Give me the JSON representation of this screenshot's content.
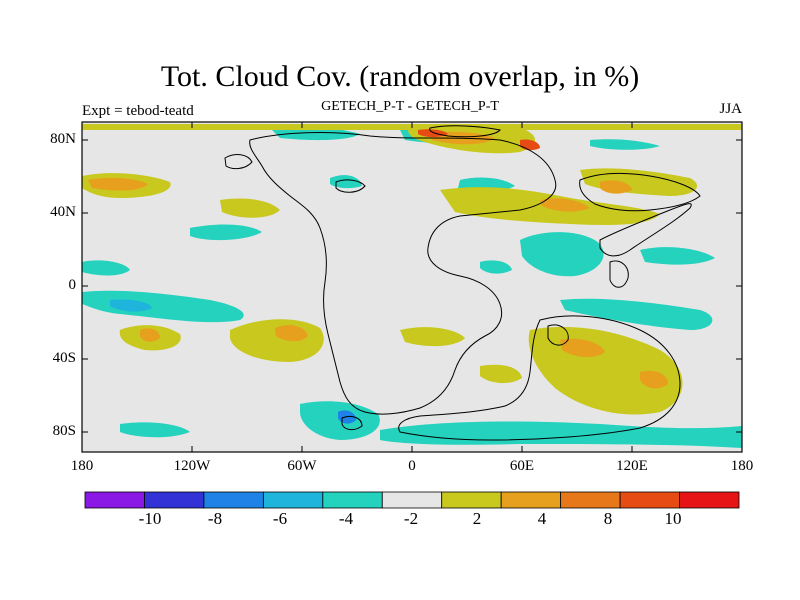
{
  "title": "Tot. Cloud Cov. (random overlap, in %)",
  "subtitle_left": "Expt = tebod-teatd",
  "subtitle_center": "GETECH_P-T - GETECH_P-T",
  "subtitle_right": "JJA",
  "y_ticks": [
    "80N",
    "40N",
    "0",
    "40S",
    "80S"
  ],
  "x_ticks": [
    "180",
    "120W",
    "60W",
    "0",
    "60E",
    "120E",
    "180"
  ],
  "colorbar": {
    "colors": [
      "#8a19e6",
      "#3232d6",
      "#1e82e6",
      "#1eb4dc",
      "#24d2be",
      "#e6e6e6",
      "#c8c81e",
      "#e6a01e",
      "#e67819",
      "#e64b14",
      "#e61414"
    ],
    "labels": [
      "-10",
      "-8",
      "-6",
      "-4",
      "-2",
      "2",
      "4",
      "8",
      "10"
    ]
  },
  "legend": {
    "neutral": "#e6e6e6",
    "land_outline": "#000000"
  }
}
